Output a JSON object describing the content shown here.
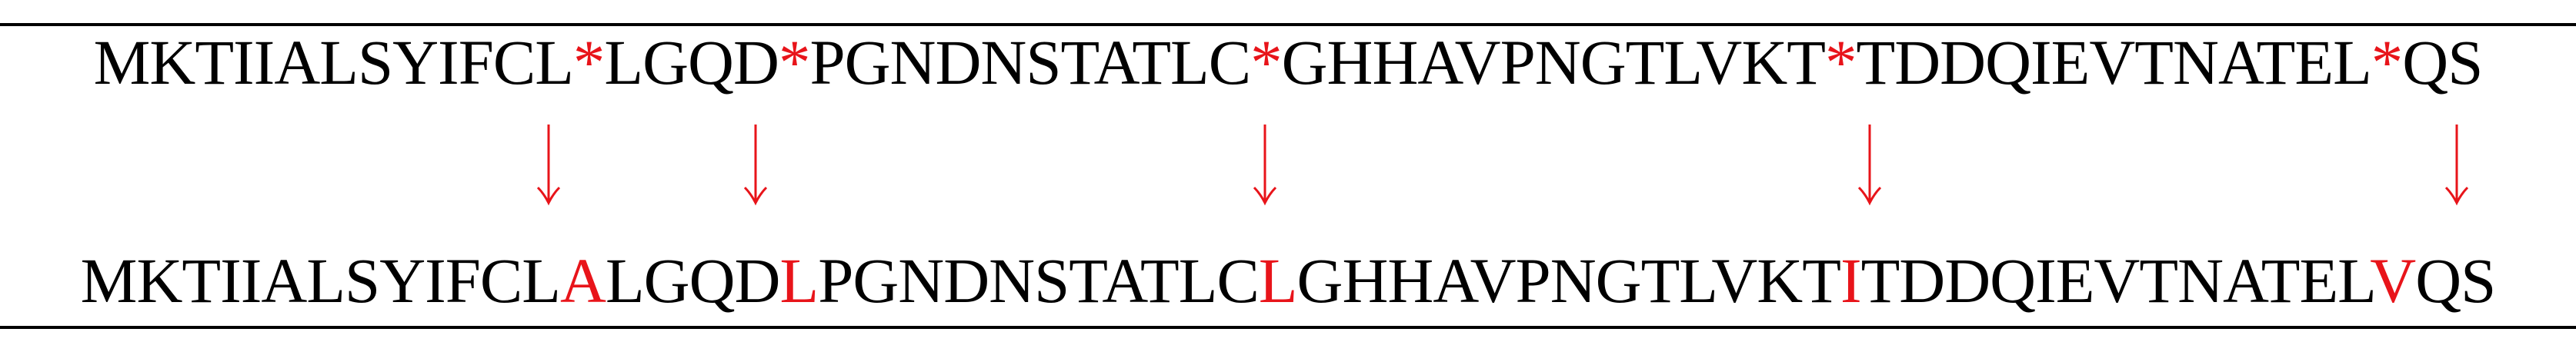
{
  "original": {
    "segments": [
      {
        "text": "MKTIIALSYIFCL",
        "kind": "seg"
      },
      {
        "text": "*",
        "kind": "mark"
      },
      {
        "text": "LGQD",
        "kind": "seg"
      },
      {
        "text": "*",
        "kind": "mark"
      },
      {
        "text": "PGNDNSTATLC",
        "kind": "seg"
      },
      {
        "text": "*",
        "kind": "mark"
      },
      {
        "text": "GHHAVPNGTLVKT",
        "kind": "seg"
      },
      {
        "text": "*",
        "kind": "mark"
      },
      {
        "text": "TDDQIEVTNATEL",
        "kind": "seg"
      },
      {
        "text": "*",
        "kind": "mark"
      },
      {
        "text": "QS",
        "kind": "seg"
      }
    ]
  },
  "substituted": {
    "segments": [
      {
        "text": "MKTIIALSYIFCL",
        "kind": "seg"
      },
      {
        "text": "A",
        "kind": "mark"
      },
      {
        "text": "LGQD",
        "kind": "seg"
      },
      {
        "text": "L",
        "kind": "mark"
      },
      {
        "text": "PGNDNSTATLC",
        "kind": "seg"
      },
      {
        "text": "L",
        "kind": "mark"
      },
      {
        "text": "GHHAVPNGTLVKT",
        "kind": "seg"
      },
      {
        "text": "I",
        "kind": "mark"
      },
      {
        "text": "TDDQIEVTNATEL",
        "kind": "seg"
      },
      {
        "text": "V",
        "kind": "mark"
      },
      {
        "text": "QS",
        "kind": "seg"
      }
    ]
  },
  "colors": {
    "highlight": "#e8141a",
    "text": "#000000",
    "rule": "#000000"
  },
  "icons": {
    "arrow": "arrow-down-icon"
  }
}
